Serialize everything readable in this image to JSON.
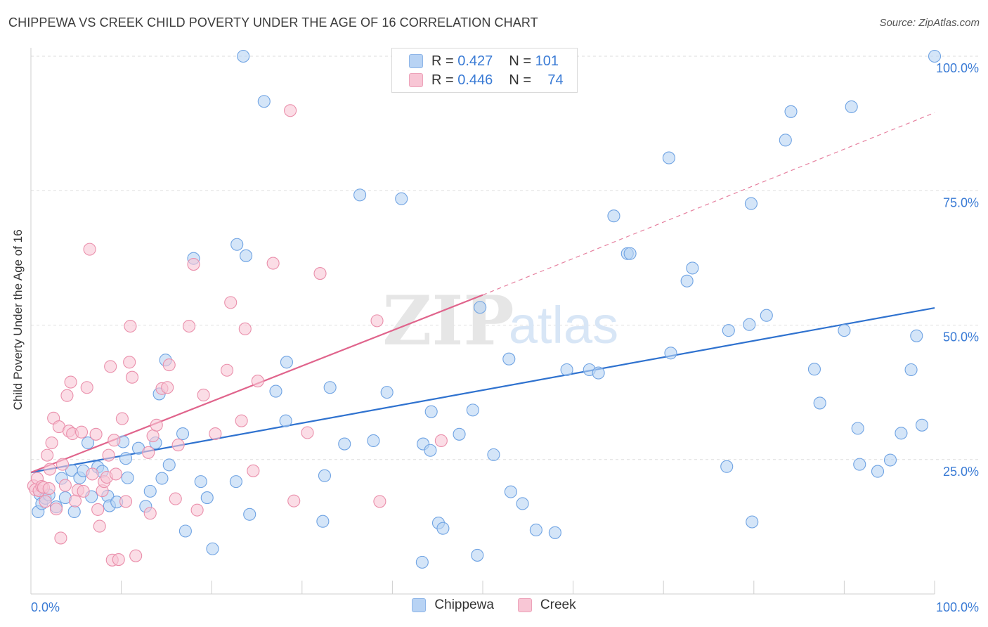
{
  "header": {
    "title": "CHIPPEWA VS CREEK CHILD POVERTY UNDER THE AGE OF 16 CORRELATION CHART",
    "source": "Source: ZipAtlas.com"
  },
  "watermark": {
    "zip": "ZIP",
    "atlas": "atlas"
  },
  "legend": {
    "rows": [
      {
        "r_label": "R =",
        "r_value": "0.427",
        "n_label": "N =",
        "n_value": "101",
        "color": "#a9c8f0"
      },
      {
        "r_label": "R =",
        "r_value": "0.446",
        "n_label": "N =",
        "n_value": "74",
        "color": "#f6b9cb"
      }
    ]
  },
  "chart_data": {
    "type": "scatter",
    "title": "CHIPPEWA VS CREEK CHILD POVERTY UNDER THE AGE OF 16 CORRELATION CHART",
    "xlabel": "",
    "ylabel": "Child Poverty Under the Age of 16",
    "xlim": [
      0,
      100
    ],
    "ylim": [
      0,
      100
    ],
    "x_tick_labels": [
      "0.0%",
      "100.0%"
    ],
    "y_tick_labels": [
      "25.0%",
      "50.0%",
      "75.0%",
      "100.0%"
    ],
    "y_ticks": [
      25,
      50,
      75,
      100
    ],
    "grid": true,
    "legend_position": "bottom",
    "series": [
      {
        "name": "Chippewa",
        "color": "#6fa3e3",
        "fill": "#b8d3f4",
        "trend": {
          "x0": 0,
          "y0": 22.6,
          "x1": 100,
          "y1": 53.2,
          "style": "solid"
        },
        "points": [
          [
            0.8,
            15.3
          ],
          [
            1.0,
            18.5
          ],
          [
            1.2,
            16.8
          ],
          [
            1.6,
            17.8
          ],
          [
            2.0,
            18.4
          ],
          [
            2.8,
            16.2
          ],
          [
            3.4,
            21.5
          ],
          [
            3.8,
            17.9
          ],
          [
            4.5,
            23.0
          ],
          [
            4.8,
            15.3
          ],
          [
            5.4,
            21.6
          ],
          [
            5.8,
            22.9
          ],
          [
            6.3,
            28.1
          ],
          [
            6.7,
            18.1
          ],
          [
            7.4,
            23.6
          ],
          [
            7.9,
            22.8
          ],
          [
            8.5,
            18.2
          ],
          [
            8.7,
            16.4
          ],
          [
            9.5,
            17.1
          ],
          [
            10.2,
            28.3
          ],
          [
            10.5,
            25.2
          ],
          [
            10.7,
            21.6
          ],
          [
            11.9,
            27.1
          ],
          [
            12.7,
            16.3
          ],
          [
            13.2,
            19.1
          ],
          [
            13.8,
            28.1
          ],
          [
            14.2,
            37.2
          ],
          [
            14.5,
            21.5
          ],
          [
            14.9,
            43.5
          ],
          [
            15.3,
            24.0
          ],
          [
            16.8,
            29.8
          ],
          [
            17.1,
            11.7
          ],
          [
            18.0,
            62.4
          ],
          [
            18.8,
            20.9
          ],
          [
            19.5,
            17.9
          ],
          [
            20.1,
            8.4
          ],
          [
            22.7,
            20.9
          ],
          [
            22.8,
            65.0
          ],
          [
            23.5,
            100.0
          ],
          [
            23.8,
            62.9
          ],
          [
            24.2,
            14.8
          ],
          [
            25.8,
            91.6
          ],
          [
            27.1,
            37.7
          ],
          [
            28.2,
            32.2
          ],
          [
            28.3,
            43.1
          ],
          [
            32.3,
            13.5
          ],
          [
            32.5,
            22.0
          ],
          [
            33.1,
            38.4
          ],
          [
            34.7,
            27.9
          ],
          [
            36.4,
            74.2
          ],
          [
            37.9,
            28.5
          ],
          [
            39.4,
            37.5
          ],
          [
            41.0,
            73.5
          ],
          [
            43.3,
            5.9
          ],
          [
            43.4,
            27.9
          ],
          [
            44.2,
            26.7
          ],
          [
            44.3,
            33.9
          ],
          [
            45.1,
            13.2
          ],
          [
            45.6,
            12.2
          ],
          [
            47.4,
            29.7
          ],
          [
            48.9,
            34.2
          ],
          [
            49.4,
            7.2
          ],
          [
            49.7,
            53.3
          ],
          [
            51.2,
            25.9
          ],
          [
            52.9,
            43.7
          ],
          [
            53.1,
            19.0
          ],
          [
            54.4,
            16.8
          ],
          [
            55.9,
            11.9
          ],
          [
            58.0,
            11.4
          ],
          [
            59.3,
            41.7
          ],
          [
            61.8,
            41.7
          ],
          [
            62.8,
            41.1
          ],
          [
            64.5,
            70.3
          ],
          [
            66.0,
            63.3
          ],
          [
            66.3,
            63.3
          ],
          [
            70.6,
            81.1
          ],
          [
            70.8,
            44.8
          ],
          [
            72.6,
            58.2
          ],
          [
            73.2,
            60.6
          ],
          [
            77.0,
            23.7
          ],
          [
            77.2,
            49.0
          ],
          [
            79.5,
            50.1
          ],
          [
            79.7,
            72.6
          ],
          [
            79.8,
            13.4
          ],
          [
            81.4,
            51.8
          ],
          [
            83.5,
            84.4
          ],
          [
            84.1,
            89.7
          ],
          [
            86.7,
            41.8
          ],
          [
            87.3,
            35.5
          ],
          [
            90.0,
            49.0
          ],
          [
            90.8,
            90.6
          ],
          [
            91.5,
            30.8
          ],
          [
            91.7,
            24.1
          ],
          [
            93.7,
            22.8
          ],
          [
            95.1,
            24.9
          ],
          [
            96.3,
            29.9
          ],
          [
            97.4,
            41.7
          ],
          [
            98.0,
            48.0
          ],
          [
            98.6,
            31.4
          ],
          [
            100.0,
            100.0
          ]
        ]
      },
      {
        "name": "Creek",
        "color": "#ea8fab",
        "fill": "#f8c6d5",
        "trend": {
          "x0": 0,
          "y0": 22.6,
          "x1": 50,
          "y1": 55.6,
          "style": "solid",
          "extend_to_x": 100,
          "extend_to_y": 89.5,
          "extend_style": "dashed"
        },
        "points": [
          [
            0.3,
            20.1
          ],
          [
            0.5,
            19.4
          ],
          [
            0.7,
            21.5
          ],
          [
            0.9,
            19.2
          ],
          [
            1.2,
            20.0
          ],
          [
            1.4,
            19.8
          ],
          [
            1.6,
            17.2
          ],
          [
            1.8,
            25.8
          ],
          [
            2.0,
            19.6
          ],
          [
            2.1,
            23.2
          ],
          [
            2.3,
            28.1
          ],
          [
            2.5,
            32.7
          ],
          [
            2.8,
            15.8
          ],
          [
            3.1,
            31.1
          ],
          [
            3.3,
            10.4
          ],
          [
            3.5,
            24.1
          ],
          [
            3.8,
            20.2
          ],
          [
            4.0,
            36.9
          ],
          [
            4.2,
            30.3
          ],
          [
            4.4,
            39.4
          ],
          [
            4.6,
            29.8
          ],
          [
            4.9,
            17.3
          ],
          [
            5.2,
            19.3
          ],
          [
            5.6,
            30.1
          ],
          [
            5.8,
            19.1
          ],
          [
            6.2,
            38.4
          ],
          [
            6.5,
            64.1
          ],
          [
            6.8,
            22.3
          ],
          [
            7.2,
            29.7
          ],
          [
            7.4,
            15.7
          ],
          [
            7.6,
            12.6
          ],
          [
            7.9,
            19.2
          ],
          [
            8.1,
            20.9
          ],
          [
            8.4,
            21.7
          ],
          [
            8.6,
            25.8
          ],
          [
            8.8,
            42.3
          ],
          [
            9.2,
            28.6
          ],
          [
            9.4,
            22.3
          ],
          [
            9.0,
            6.3
          ],
          [
            9.7,
            6.4
          ],
          [
            10.1,
            32.6
          ],
          [
            10.5,
            17.2
          ],
          [
            10.9,
            43.1
          ],
          [
            11.0,
            49.8
          ],
          [
            11.2,
            40.3
          ],
          [
            11.6,
            7.1
          ],
          [
            13.0,
            26.3
          ],
          [
            13.2,
            15.0
          ],
          [
            13.5,
            29.4
          ],
          [
            13.9,
            31.4
          ],
          [
            14.5,
            38.2
          ],
          [
            15.1,
            38.4
          ],
          [
            15.3,
            42.6
          ],
          [
            16.0,
            17.7
          ],
          [
            16.3,
            27.7
          ],
          [
            18.0,
            61.3
          ],
          [
            18.4,
            15.6
          ],
          [
            19.1,
            37.0
          ],
          [
            21.7,
            41.6
          ],
          [
            22.1,
            54.2
          ],
          [
            23.3,
            32.2
          ],
          [
            23.7,
            49.3
          ],
          [
            24.6,
            22.9
          ],
          [
            25.1,
            39.6
          ],
          [
            26.8,
            61.5
          ],
          [
            29.1,
            17.3
          ],
          [
            30.6,
            30.0
          ],
          [
            32.0,
            59.6
          ],
          [
            38.3,
            50.8
          ],
          [
            38.6,
            17.2
          ],
          [
            45.4,
            28.5
          ],
          [
            28.7,
            89.9
          ],
          [
            17.5,
            49.8
          ],
          [
            20.4,
            29.8
          ]
        ]
      }
    ]
  }
}
